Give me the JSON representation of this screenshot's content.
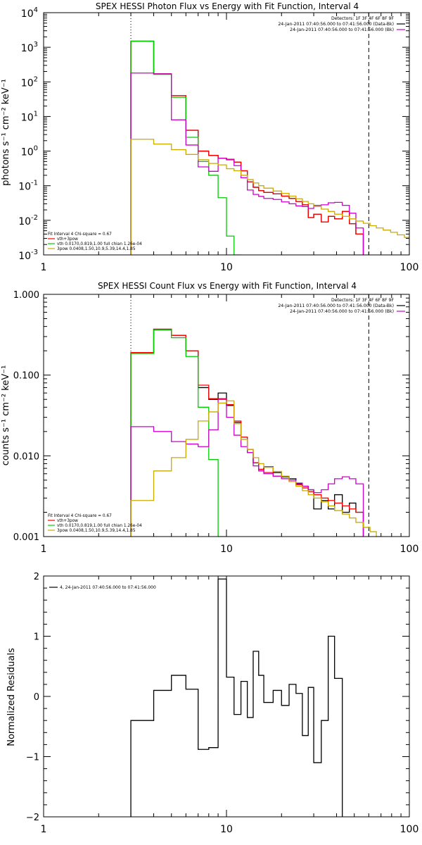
{
  "chart_data": [
    {
      "type": "line",
      "title": "SPEX HESSI Photon Flux vs Energy with Fit Function, Interval 4",
      "ylabel": "photons s⁻¹ cm⁻² keV⁻¹",
      "xlabel": "",
      "xscale": "log",
      "yscale": "log",
      "xlim": [
        1,
        100
      ],
      "ylim": [
        0.001,
        10000
      ],
      "xticks": [
        1,
        10,
        100
      ],
      "xtick_labels": [
        "1",
        "10",
        "100"
      ],
      "yticks": [
        0.001,
        0.01,
        0.1,
        1,
        10,
        100,
        1000,
        10000
      ],
      "ytick_labels": [
        [
          "10",
          "-3"
        ],
        [
          "10",
          "-2"
        ],
        [
          "10",
          "-1"
        ],
        [
          "10",
          "0"
        ],
        [
          "10",
          "1"
        ],
        [
          "10",
          "2"
        ],
        [
          "10",
          "3"
        ],
        [
          "10",
          "4"
        ]
      ],
      "vlines": [
        {
          "x": 3,
          "style": "dotted"
        },
        {
          "x": 60,
          "style": "dashed"
        }
      ],
      "top_legend": [
        {
          "text": "Detectors: 1F 3F 4F 6F 8F 9F",
          "color": "#000000"
        },
        {
          "text": "24-Jan-2011 07:40:56.000 to 07:41:56.000 (Data-Bk)",
          "color": "#000000"
        },
        {
          "text": "24-Jan-2011 07:40:56.000 to 07:41:56.000 (Bk)",
          "color": "#cc00cc"
        }
      ],
      "fit_legend": [
        {
          "text": "Fit Interval  4    Chi-square = 0.67",
          "color": "#000000"
        },
        {
          "text": "vth+3pow",
          "color": "#ff0000"
        },
        {
          "text": "vth 0.0170,0.819,1.00  full chian 1.26e-04",
          "color": "#00cc00"
        },
        {
          "text": "3pow 0.0408,1.50,10.9,5.39,14.4,1.85",
          "color": "#ccaa00"
        }
      ],
      "edges": [
        3,
        4,
        5,
        6,
        7,
        8,
        9,
        10,
        11,
        12,
        13,
        14,
        15,
        16,
        18,
        20,
        22,
        24,
        26,
        28,
        30,
        33,
        36,
        39,
        43,
        47,
        51,
        56,
        61,
        66,
        72,
        79,
        86,
        94,
        100
      ],
      "series": [
        {
          "color": "#000000",
          "values": [
            1500,
            170,
            40,
            4,
            1.0,
            0.75,
            0.62,
            0.58,
            0.48,
            0.27,
            0.13,
            0.09,
            0.072,
            0.064,
            0.058,
            0.05,
            0.043,
            0.035,
            0.028,
            0.012,
            0.015,
            0.009,
            0.013,
            0.011,
            0.018,
            0.008,
            0.004
          ]
        },
        {
          "color": "#ff0000",
          "values": [
            1500,
            170,
            40,
            4,
            1.0,
            0.75,
            0.62,
            0.58,
            0.48,
            0.27,
            0.13,
            0.09,
            0.072,
            0.064,
            0.058,
            0.05,
            0.043,
            0.035,
            0.028,
            0.012,
            0.015,
            0.009,
            0.013,
            0.011,
            0.018,
            0.008,
            0.004
          ]
        },
        {
          "color": "#00cc00",
          "values": [
            1500,
            165,
            36,
            2.5,
            0.5,
            0.2,
            0.045,
            0.0035,
            0.0006
          ]
        },
        {
          "color": "#cc00cc",
          "values": [
            180,
            170,
            8,
            1.5,
            0.35,
            0.26,
            0.62,
            0.56,
            0.38,
            0.17,
            0.075,
            0.056,
            0.049,
            0.043,
            0.04,
            0.034,
            0.03,
            0.026,
            0.025,
            0.022,
            0.027,
            0.028,
            0.032,
            0.033,
            0.027,
            0.016,
            0.006
          ]
        },
        {
          "color": "#ccaa00",
          "values": [
            2.2,
            1.6,
            1.1,
            0.8,
            0.56,
            0.44,
            0.4,
            0.31,
            0.27,
            0.2,
            0.15,
            0.12,
            0.1,
            0.085,
            0.07,
            0.06,
            0.05,
            0.042,
            0.035,
            0.03,
            0.025,
            0.021,
            0.018,
            0.015,
            0.013,
            0.011,
            0.0095,
            0.0082,
            0.007,
            0.006,
            0.0052,
            0.0045,
            0.0038,
            0.0032
          ]
        }
      ]
    },
    {
      "type": "line",
      "title": "SPEX HESSI Count Flux vs Energy with Fit Function, Interval 4",
      "ylabel": "counts s⁻¹ cm⁻² keV⁻¹",
      "xlabel": "",
      "xscale": "log",
      "yscale": "log",
      "xlim": [
        1,
        100
      ],
      "ylim": [
        0.001,
        1
      ],
      "xticks": [
        1,
        10,
        100
      ],
      "xtick_labels": [
        "1",
        "10",
        "100"
      ],
      "yticks": [
        0.001,
        0.01,
        0.1,
        1
      ],
      "ytick_labels": [
        "0.001",
        "0.010",
        "0.100",
        "1.000"
      ],
      "vlines": [
        {
          "x": 3,
          "style": "dotted"
        },
        {
          "x": 60,
          "style": "dashed"
        }
      ],
      "top_legend": [
        {
          "text": "Detectors: 1F 3F 4F 6F 8F 9F",
          "color": "#000000"
        },
        {
          "text": "24-Jan-2011 07:40:56.000 to 07:41:56.000 (Data-Bk)",
          "color": "#000000"
        },
        {
          "text": "24-Jan-2011 07:40:56.000 to 07:41:56.000 (Bk)",
          "color": "#cc00cc"
        }
      ],
      "fit_legend": [
        {
          "text": "Fit Interval  4    Chi-square = 0.67",
          "color": "#000000"
        },
        {
          "text": "vth+3pow",
          "color": "#ff0000"
        },
        {
          "text": "vth 0.0170,0.819,1.00  full chian 1.26e-04",
          "color": "#00cc00"
        },
        {
          "text": "3pow 0.0408,1.50,10.9,5.39,14.4,1.85",
          "color": "#ccaa00"
        }
      ],
      "edges": [
        3,
        4,
        5,
        6,
        7,
        8,
        9,
        10,
        11,
        12,
        13,
        14,
        15,
        16,
        18,
        20,
        22,
        24,
        26,
        28,
        30,
        33,
        36,
        39,
        43,
        47,
        51,
        56,
        61,
        66,
        72,
        79,
        86,
        94,
        100
      ],
      "series": [
        {
          "color": "#000000",
          "values": [
            0.19,
            0.37,
            0.31,
            0.2,
            0.07,
            0.05,
            0.06,
            0.042,
            0.026,
            0.017,
            0.011,
            0.0082,
            0.0068,
            0.0073,
            0.0062,
            0.0055,
            0.0052,
            0.0045,
            0.0042,
            0.0038,
            0.0022,
            0.0028,
            0.0022,
            0.0033,
            0.002,
            0.0026,
            0.002
          ]
        },
        {
          "color": "#ff0000",
          "values": [
            0.19,
            0.37,
            0.31,
            0.2,
            0.075,
            0.051,
            0.051,
            0.043,
            0.027,
            0.017,
            0.012,
            0.0082,
            0.0068,
            0.0062,
            0.0056,
            0.0052,
            0.0048,
            0.0044,
            0.004,
            0.0036,
            0.0033,
            0.003,
            0.0028,
            0.0026,
            0.0024,
            0.0022,
            0.002
          ]
        },
        {
          "color": "#00cc00",
          "values": [
            0.185,
            0.36,
            0.29,
            0.17,
            0.04,
            0.009,
            0.0009
          ]
        },
        {
          "color": "#cc00cc",
          "values": [
            0.023,
            0.02,
            0.015,
            0.014,
            0.013,
            0.021,
            0.05,
            0.03,
            0.018,
            0.013,
            0.011,
            0.0075,
            0.0065,
            0.006,
            0.0056,
            0.0052,
            0.005,
            0.0046,
            0.0042,
            0.0038,
            0.0035,
            0.0038,
            0.0045,
            0.0052,
            0.0055,
            0.0052,
            0.0045
          ]
        },
        {
          "color": "#ccaa00",
          "values": [
            0.0028,
            0.0065,
            0.0095,
            0.016,
            0.027,
            0.035,
            0.045,
            0.048,
            0.025,
            0.016,
            0.012,
            0.0095,
            0.008,
            0.0072,
            0.0064,
            0.0056,
            0.0048,
            0.0042,
            0.0037,
            0.0033,
            0.003,
            0.0027,
            0.0024,
            0.0021,
            0.0019,
            0.0017,
            0.0015,
            0.0013,
            0.00115,
            0.001
          ]
        }
      ]
    },
    {
      "type": "line",
      "title": "",
      "ylabel": "Normalized Residuals",
      "xlabel": "",
      "xscale": "log",
      "yscale": "linear",
      "xlim": [
        1,
        100
      ],
      "ylim": [
        -2,
        2
      ],
      "xticks": [
        1,
        10,
        100
      ],
      "xtick_labels": [
        "1",
        "10",
        "100"
      ],
      "yticks": [
        -2,
        -1,
        0,
        1,
        2
      ],
      "ytick_labels": [
        "−2",
        "−1",
        "0",
        "1",
        "2"
      ],
      "legend": [
        {
          "text": "4, 24-Jan-2011 07:40:56.000 to 07:41:56.000",
          "color": "#000000"
        }
      ],
      "edges": [
        3,
        4,
        5,
        6,
        7,
        8,
        9,
        10,
        11,
        12,
        13,
        14,
        15,
        16,
        18,
        20,
        22,
        24,
        26,
        28,
        30,
        33,
        36,
        39,
        43,
        47,
        51,
        56,
        61
      ],
      "series": [
        {
          "color": "#000000",
          "values": [
            -0.4,
            0.1,
            0.35,
            0.12,
            -0.88,
            -0.85,
            1.95,
            0.32,
            -0.3,
            0.25,
            -0.35,
            0.75,
            0.35,
            -0.1,
            0.1,
            -0.15,
            0.2,
            0.05,
            -0.65,
            0.15,
            -1.1,
            -0.4,
            1.0,
            0.3
          ]
        }
      ]
    }
  ]
}
